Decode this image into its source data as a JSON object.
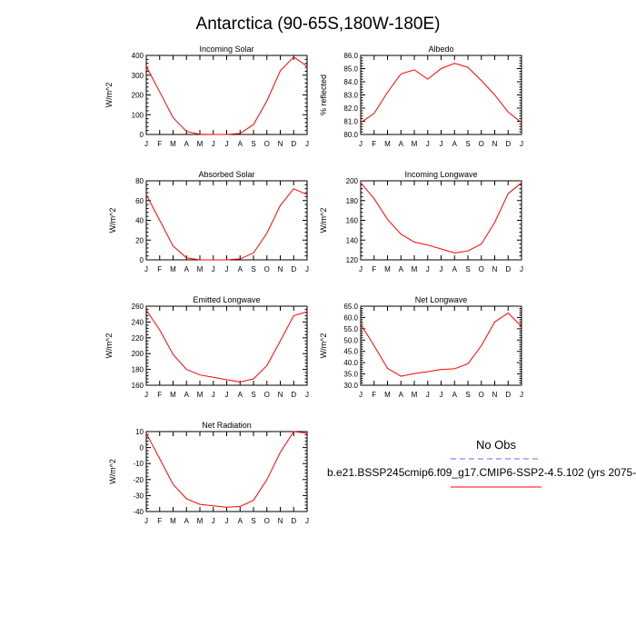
{
  "page_title": "Antarctica (90-65S,180W-180E)",
  "colors": {
    "model_line": "#ff0000",
    "obs_line": "#6666ff",
    "axis": "#000000"
  },
  "legend": {
    "obs_label": "No Obs",
    "case_label": "b.e21.BSSP245cmip6.f09_g17.CMIP6-SSP2-4.5.102 (yrs 2075-"
  },
  "chart_data": [
    {
      "type": "line",
      "title": "Incoming Solar",
      "ylabel": "W/m^2",
      "categories": [
        "J",
        "F",
        "M",
        "A",
        "M",
        "J",
        "J",
        "A",
        "S",
        "O",
        "N",
        "D",
        "J"
      ],
      "values": [
        345,
        215,
        85,
        15,
        1,
        0,
        0,
        5,
        50,
        170,
        322,
        392,
        345
      ],
      "ylim": [
        0,
        400
      ],
      "yticks": [
        "0",
        "100",
        "200",
        "300",
        "400"
      ],
      "grid": false
    },
    {
      "type": "line",
      "title": "Albedo",
      "ylabel": "% reflected",
      "categories": [
        "J",
        "F",
        "M",
        "A",
        "M",
        "J",
        "J",
        "A",
        "S",
        "O",
        "N",
        "D",
        "J"
      ],
      "values": [
        80.9,
        81.6,
        83.2,
        84.6,
        84.9,
        84.2,
        85.0,
        85.4,
        85.1,
        84.1,
        83.0,
        81.7,
        80.9
      ],
      "ylim": [
        80,
        86
      ],
      "yticks": [
        "80.0",
        "81.0",
        "82.0",
        "83.0",
        "84.0",
        "85.0",
        "86.0"
      ],
      "grid": false
    },
    {
      "type": "line",
      "title": "Absorbed Solar",
      "ylabel": "W/m^2",
      "categories": [
        "J",
        "F",
        "M",
        "A",
        "M",
        "J",
        "J",
        "A",
        "S",
        "O",
        "N",
        "D",
        "J"
      ],
      "values": [
        66,
        40,
        14,
        2,
        0,
        0,
        0,
        1,
        7,
        27,
        55,
        72,
        66
      ],
      "ylim": [
        0,
        80
      ],
      "yticks": [
        "0",
        "20",
        "40",
        "60",
        "80"
      ],
      "grid": false
    },
    {
      "type": "line",
      "title": "Incoming Longwave",
      "ylabel": "W/m^2",
      "categories": [
        "J",
        "F",
        "M",
        "A",
        "M",
        "J",
        "J",
        "A",
        "S",
        "O",
        "N",
        "D",
        "J"
      ],
      "values": [
        198,
        182,
        161,
        146,
        138,
        135,
        131,
        127,
        129,
        136,
        158,
        187,
        198
      ],
      "ylim": [
        120,
        200
      ],
      "yticks": [
        "120",
        "140",
        "160",
        "180",
        "200"
      ],
      "grid": false
    },
    {
      "type": "line",
      "title": "Emitted Longwave",
      "ylabel": "W/m^2",
      "categories": [
        "J",
        "F",
        "M",
        "A",
        "M",
        "J",
        "J",
        "A",
        "S",
        "O",
        "N",
        "D",
        "J"
      ],
      "values": [
        255,
        230,
        199,
        180,
        173,
        170,
        167,
        164,
        168,
        185,
        216,
        248,
        253
      ],
      "ylim": [
        160,
        260
      ],
      "yticks": [
        "160",
        "180",
        "200",
        "220",
        "240",
        "260"
      ],
      "grid": false
    },
    {
      "type": "line",
      "title": "Net Longwave",
      "ylabel": "W/m^2",
      "categories": [
        "J",
        "F",
        "M",
        "A",
        "M",
        "J",
        "J",
        "A",
        "S",
        "O",
        "N",
        "D",
        "J"
      ],
      "values": [
        57.0,
        47.5,
        37.5,
        34.0,
        35.2,
        36.0,
        37.0,
        37.3,
        39.5,
        47.5,
        58.0,
        62.0,
        56.0
      ],
      "ylim": [
        30,
        65
      ],
      "yticks": [
        "30.0",
        "35.0",
        "40.0",
        "45.0",
        "50.0",
        "55.0",
        "60.0",
        "65.0"
      ],
      "grid": false
    },
    {
      "type": "line",
      "title": "Net Radiation",
      "ylabel": "W/m^2",
      "categories": [
        "J",
        "F",
        "M",
        "A",
        "M",
        "J",
        "J",
        "A",
        "S",
        "O",
        "N",
        "D",
        "J"
      ],
      "values": [
        9,
        -7,
        -23,
        -32,
        -35.5,
        -36.5,
        -37.3,
        -36.8,
        -33,
        -20,
        -3,
        10,
        9
      ],
      "ylim": [
        -40,
        10
      ],
      "yticks": [
        "-40",
        "-30",
        "-20",
        "-10",
        "0",
        "10"
      ],
      "grid": false
    }
  ]
}
